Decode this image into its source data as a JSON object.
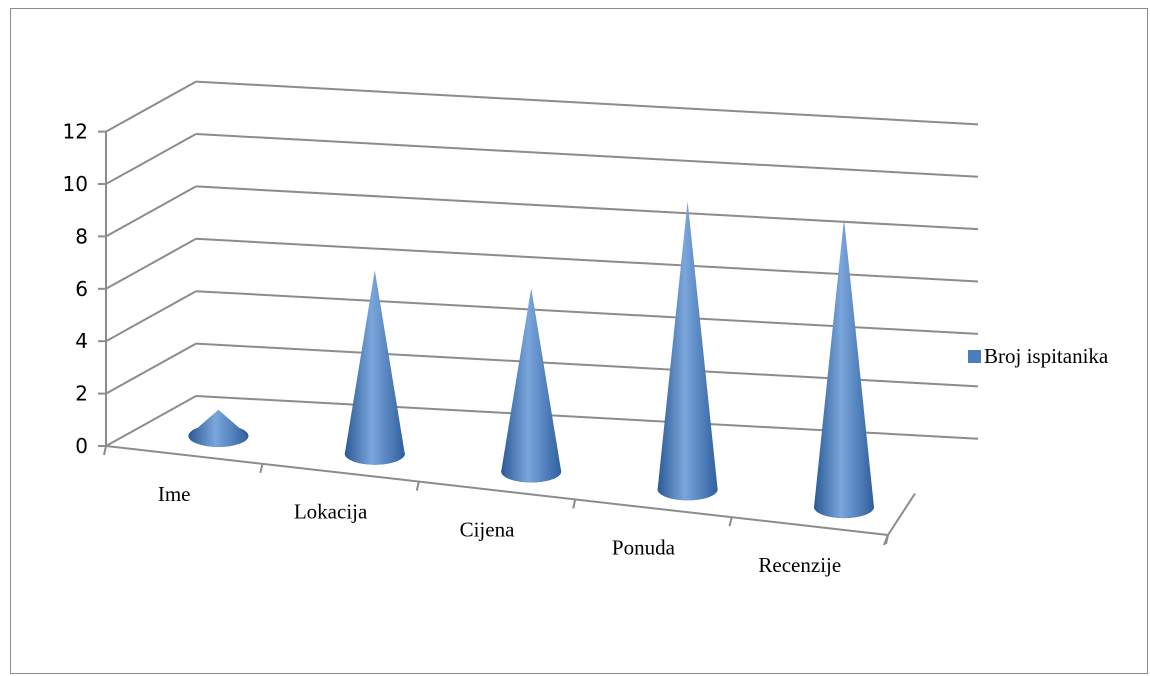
{
  "chart_data": {
    "type": "bar",
    "style": "3d-cone",
    "categories": [
      "Ime",
      "Lokacija",
      "Cijena",
      "Ponuda",
      "Recenzije"
    ],
    "series": [
      {
        "name": "Broj ispitanika",
        "values": [
          1,
          7,
          7,
          11,
          11
        ],
        "color": "#4a7ebb"
      }
    ],
    "y_ticks": [
      "0",
      "2",
      "4",
      "6",
      "8",
      "10",
      "12"
    ],
    "ylim": [
      0,
      12
    ],
    "grid": true,
    "legend_position": "right"
  }
}
